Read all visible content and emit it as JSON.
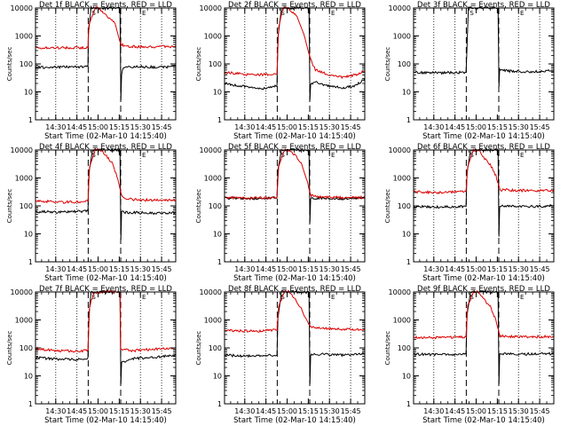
{
  "figure": {
    "xlabel": "Start Time (02-Mar-10 14:15:40)",
    "ylabel": "Counts/sec",
    "xticks": [
      "14:30",
      "14:45",
      "15:00",
      "15:15",
      "15:30",
      "15:45"
    ],
    "yticks": [
      "1",
      "10",
      "100",
      "1000",
      "10000"
    ],
    "marker_labels": [
      "S",
      "E"
    ]
  },
  "chart_data": [
    {
      "type": "line",
      "title": "Det 1f BLACK = Events, RED = LLD",
      "xlim": [
        "14:15:40",
        "15:55:00"
      ],
      "ylim": [
        1,
        10000
      ],
      "yscale": "log",
      "grid_dotted": [
        "14:30",
        "14:45",
        "15:30",
        "15:45"
      ],
      "dashed_markers": [
        "14:53",
        "15:16"
      ],
      "series": [
        {
          "name": "Events",
          "color": "#000000",
          "x": [
            "14:15:40",
            "14:52:50",
            "14:53:10",
            "14:55:00",
            "15:15:30",
            "15:16:10",
            "15:16:40",
            "15:18:00",
            "15:30",
            "15:45",
            "15:55"
          ],
          "values": [
            75,
            80,
            1200,
            10000,
            10000,
            5,
            45,
            75,
            80,
            75,
            85
          ]
        },
        {
          "name": "LLD",
          "color": "#dd0000",
          "x": [
            "14:15:40",
            "14:52:50",
            "14:53:30",
            "14:58",
            "15:01",
            "15:04",
            "15:08",
            "15:12",
            "15:16",
            "15:20",
            "15:35",
            "15:55"
          ],
          "values": [
            380,
            380,
            2500,
            10000,
            9500,
            6500,
            4200,
            2800,
            500,
            420,
            410,
            420
          ]
        }
      ]
    },
    {
      "type": "line",
      "title": "Det 2f BLACK = Events, RED = LLD",
      "xlim": [
        "14:15:40",
        "15:55:00"
      ],
      "ylim": [
        1,
        10000
      ],
      "yscale": "log",
      "grid_dotted": [
        "14:30",
        "14:45",
        "15:30",
        "15:45"
      ],
      "dashed_markers": [
        "14:53",
        "15:16"
      ],
      "series": [
        {
          "name": "Events",
          "color": "#000000",
          "x": [
            "14:15:40",
            "14:25",
            "14:35",
            "14:45",
            "14:52:50",
            "14:53:30",
            "14:56",
            "15:15:30",
            "15:16:10",
            "15:16:40",
            "15:20",
            "15:30",
            "15:40",
            "15:48",
            "15:55"
          ],
          "values": [
            20,
            17,
            14,
            13,
            17,
            900,
            10000,
            10000,
            5,
            20,
            22,
            16,
            14,
            17,
            28
          ]
        },
        {
          "name": "LLD",
          "color": "#dd0000",
          "x": [
            "14:15:40",
            "14:25",
            "14:35",
            "14:45",
            "14:52:50",
            "14:54",
            "14:57",
            "15:00",
            "15:03",
            "15:07",
            "15:12",
            "15:16",
            "15:20",
            "15:30",
            "15:40",
            "15:48",
            "15:55"
          ],
          "values": [
            50,
            45,
            40,
            42,
            45,
            2000,
            10000,
            11000,
            7500,
            5000,
            1100,
            180,
            60,
            40,
            33,
            40,
            55
          ]
        }
      ]
    },
    {
      "type": "line",
      "title": "Det 3f BLACK = Events, RED = LLD",
      "xlim": [
        "14:15:40",
        "15:55:00"
      ],
      "ylim": [
        1,
        10000
      ],
      "yscale": "log",
      "grid_dotted": [
        "14:30",
        "14:45",
        "15:30",
        "15:45"
      ],
      "dashed_markers": [
        "14:53",
        "15:16"
      ],
      "series": [
        {
          "name": "Events",
          "color": "#000000",
          "x": [
            "14:15:40",
            "14:35",
            "14:52:50",
            "14:53:20",
            "14:54:30",
            "15:15:30",
            "15:16:10",
            "15:16:40",
            "15:25",
            "15:40",
            "15:55"
          ],
          "values": [
            50,
            48,
            50,
            200,
            10000,
            10000,
            15,
            60,
            55,
            52,
            58
          ]
        }
      ]
    },
    {
      "type": "line",
      "title": "Det 4f BLACK = Events, RED = LLD",
      "xlim": [
        "14:15:40",
        "15:55:00"
      ],
      "ylim": [
        1,
        10000
      ],
      "yscale": "log",
      "grid_dotted": [
        "14:30",
        "14:45",
        "15:30",
        "15:45"
      ],
      "dashed_markers": [
        "14:53",
        "15:16"
      ],
      "series": [
        {
          "name": "Events",
          "color": "#000000",
          "x": [
            "14:15:40",
            "14:35",
            "14:52:50",
            "14:53:30",
            "14:56",
            "15:15:30",
            "15:16:10",
            "15:16:40",
            "15:25",
            "15:40",
            "15:55"
          ],
          "values": [
            62,
            60,
            65,
            1500,
            10000,
            10000,
            6,
            60,
            58,
            55,
            58
          ]
        },
        {
          "name": "LLD",
          "color": "#dd0000",
          "x": [
            "14:15:40",
            "14:35",
            "14:52:50",
            "14:54",
            "14:58",
            "15:02",
            "15:06",
            "15:10",
            "15:14",
            "15:17",
            "15:25",
            "15:40",
            "15:55"
          ],
          "values": [
            150,
            135,
            145,
            2500,
            10000,
            10000,
            6000,
            3500,
            900,
            200,
            165,
            160,
            165
          ]
        }
      ]
    },
    {
      "type": "line",
      "title": "Det 5f BLACK = Events, RED = LLD",
      "xlim": [
        "14:15:40",
        "15:55:00"
      ],
      "ylim": [
        1,
        10000
      ],
      "yscale": "log",
      "grid_dotted": [
        "14:30",
        "14:45",
        "15:30",
        "15:45"
      ],
      "dashed_markers": [
        "14:53",
        "15:16"
      ],
      "series": [
        {
          "name": "Events",
          "color": "#000000",
          "x": [
            "14:15:40",
            "14:35",
            "14:52:50",
            "14:53:30",
            "14:56",
            "15:15:30",
            "15:16:10",
            "15:16:40",
            "15:25",
            "15:40",
            "15:55"
          ],
          "values": [
            190,
            185,
            195,
            2000,
            10000,
            10000,
            25,
            190,
            185,
            180,
            190
          ]
        },
        {
          "name": "LLD",
          "color": "#dd0000",
          "x": [
            "14:15:40",
            "14:35",
            "14:52:50",
            "14:54",
            "14:58",
            "15:02",
            "15:06",
            "15:10",
            "15:14",
            "15:17",
            "15:25",
            "15:40",
            "15:55"
          ],
          "values": [
            195,
            190,
            200,
            2500,
            10000,
            10000,
            6000,
            3500,
            800,
            230,
            205,
            200,
            205
          ]
        }
      ]
    },
    {
      "type": "line",
      "title": "Det 6f BLACK = Events, RED = LLD",
      "xlim": [
        "14:15:40",
        "15:55:00"
      ],
      "ylim": [
        1,
        10000
      ],
      "yscale": "log",
      "grid_dotted": [
        "14:30",
        "14:45",
        "15:30",
        "15:45"
      ],
      "dashed_markers": [
        "14:53",
        "15:16"
      ],
      "series": [
        {
          "name": "Events",
          "color": "#000000",
          "x": [
            "14:15:40",
            "14:35",
            "14:52:50",
            "14:53:30",
            "14:56",
            "15:15:30",
            "15:16:10",
            "15:16:40",
            "15:25",
            "15:40",
            "15:55"
          ],
          "values": [
            95,
            90,
            95,
            1500,
            10000,
            10000,
            8,
            95,
            100,
            95,
            100
          ]
        },
        {
          "name": "LLD",
          "color": "#dd0000",
          "x": [
            "14:15:40",
            "14:35",
            "14:52:50",
            "14:54",
            "14:58",
            "15:02",
            "15:06",
            "15:10",
            "15:14",
            "15:17",
            "15:25",
            "15:40",
            "15:55"
          ],
          "values": [
            320,
            300,
            330,
            2500,
            10000,
            10000,
            5000,
            3000,
            1200,
            380,
            360,
            350,
            360
          ]
        }
      ]
    },
    {
      "type": "line",
      "title": "Det 7f BLACK = Events, RED = LLD",
      "xlim": [
        "14:15:40",
        "15:55:00"
      ],
      "ylim": [
        1,
        10000
      ],
      "yscale": "log",
      "grid_dotted": [
        "14:30",
        "14:45",
        "15:30",
        "15:45"
      ],
      "dashed_markers": [
        "14:53",
        "15:16"
      ],
      "series": [
        {
          "name": "Events",
          "color": "#000000",
          "x": [
            "14:15:40",
            "14:30",
            "14:45",
            "14:52:50",
            "14:53:30",
            "14:55",
            "15:15:30",
            "15:16:10",
            "15:16:40",
            "15:25",
            "15:40",
            "15:55"
          ],
          "values": [
            45,
            40,
            38,
            45,
            1500,
            10000,
            10000,
            5,
            30,
            42,
            45,
            55
          ]
        },
        {
          "name": "LLD",
          "color": "#dd0000",
          "x": [
            "14:15:40",
            "14:30",
            "14:45",
            "14:52:50",
            "14:54",
            "14:57",
            "15:15:30",
            "15:16",
            "15:25",
            "15:40",
            "15:55"
          ],
          "values": [
            95,
            80,
            75,
            85,
            3000,
            10000,
            10000,
            90,
            80,
            90,
            100
          ]
        }
      ]
    },
    {
      "type": "line",
      "title": "Det 8f BLACK = Events, RED = LLD",
      "xlim": [
        "14:15:40",
        "15:55:00"
      ],
      "ylim": [
        1,
        10000
      ],
      "yscale": "log",
      "grid_dotted": [
        "14:30",
        "14:45",
        "15:30",
        "15:45"
      ],
      "dashed_markers": [
        "14:53",
        "15:16"
      ],
      "series": [
        {
          "name": "Events",
          "color": "#000000",
          "x": [
            "14:15:40",
            "14:35",
            "14:52:50",
            "14:53:30",
            "14:56",
            "15:15:30",
            "15:16:10",
            "15:16:40",
            "15:25",
            "15:40",
            "15:55"
          ],
          "values": [
            55,
            50,
            55,
            1200,
            10000,
            10000,
            5,
            55,
            60,
            55,
            60
          ]
        },
        {
          "name": "LLD",
          "color": "#dd0000",
          "x": [
            "14:15:40",
            "14:35",
            "14:52:50",
            "14:54",
            "14:58",
            "15:02",
            "15:06",
            "15:10",
            "15:14",
            "15:17",
            "15:25",
            "15:40",
            "15:55"
          ],
          "values": [
            420,
            400,
            430,
            3000,
            10000,
            10000,
            5000,
            2500,
            900,
            550,
            500,
            460,
            450
          ]
        }
      ]
    },
    {
      "type": "line",
      "title": "Det 9f BLACK = Events, RED = LLD",
      "xlim": [
        "14:15:40",
        "15:55:00"
      ],
      "ylim": [
        1,
        10000
      ],
      "yscale": "log",
      "grid_dotted": [
        "14:30",
        "14:45",
        "15:30",
        "15:45"
      ],
      "dashed_markers": [
        "14:53",
        "15:16"
      ],
      "series": [
        {
          "name": "Events",
          "color": "#000000",
          "x": [
            "14:15:40",
            "14:35",
            "14:52:50",
            "14:53:30",
            "14:56",
            "15:15:30",
            "15:16:10",
            "15:16:40",
            "15:25",
            "15:40",
            "15:55"
          ],
          "values": [
            60,
            58,
            60,
            1500,
            10000,
            10000,
            5,
            60,
            62,
            60,
            62
          ]
        },
        {
          "name": "LLD",
          "color": "#dd0000",
          "x": [
            "14:15:40",
            "14:35",
            "14:52:50",
            "14:54",
            "14:58",
            "15:02",
            "15:06",
            "15:10",
            "15:14",
            "15:17",
            "15:25",
            "15:40",
            "15:55"
          ],
          "values": [
            240,
            230,
            245,
            3000,
            10000,
            10000,
            5000,
            3000,
            1000,
            270,
            255,
            250,
            255
          ]
        }
      ]
    }
  ]
}
